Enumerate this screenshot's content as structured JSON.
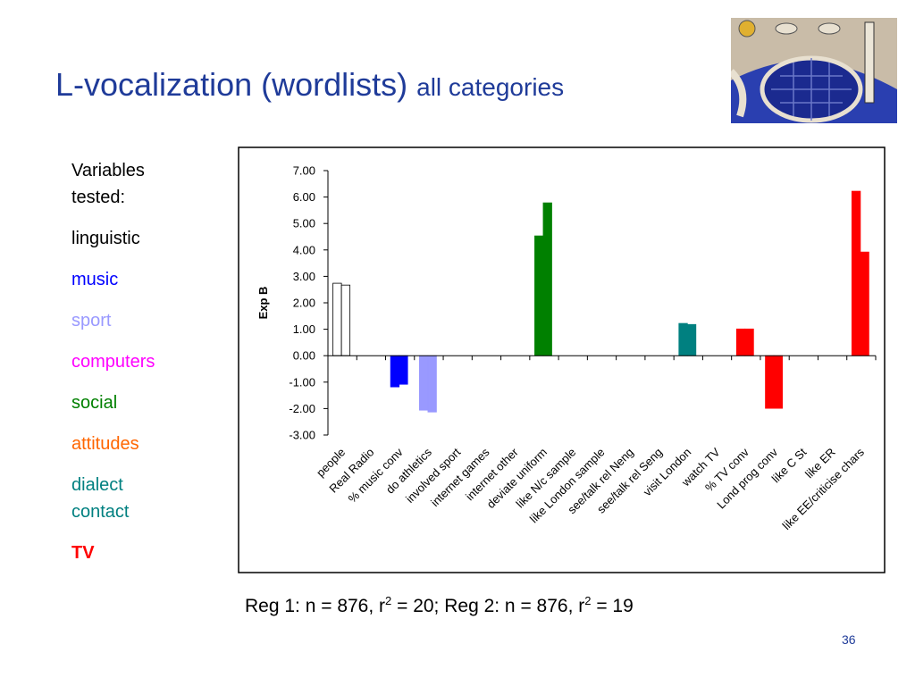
{
  "header": {
    "title": "L-vocalization (wordlists)",
    "subtitle": "all categories"
  },
  "sidebar": {
    "heading": "Variables tested:",
    "items": [
      {
        "text": "linguistic",
        "color": "#000000"
      },
      {
        "text": "music",
        "color": "#0000ff"
      },
      {
        "text": "sport",
        "color": "#9999ff"
      },
      {
        "text": "computers",
        "color": "#ff00ff"
      },
      {
        "text": "social",
        "color": "#008000"
      },
      {
        "text": "attitudes",
        "color": "#ff6600"
      },
      {
        "text": "dialect contact",
        "color": "#008080"
      },
      {
        "text": "TV",
        "color": "#ff0000"
      }
    ]
  },
  "chart_data": {
    "type": "bar",
    "y_label": "Exp B",
    "categories": [
      "people",
      "Real Radio",
      "% music conv",
      "do athletics",
      "involved sport",
      "internet games",
      "internet other",
      "deviate uniform",
      "like N/c sample",
      "like London sample",
      "see/talk rel Neng",
      "see/talk rel Seng",
      "visit London",
      "watch TV",
      "% TV conv",
      "Lond prog conv",
      "like C St",
      "like ER",
      "like EE/criticise chars"
    ],
    "colors": [
      "#ffffff",
      null,
      "#0000ff",
      "#9999ff",
      null,
      null,
      null,
      "#008000",
      null,
      null,
      null,
      null,
      "#008080",
      null,
      "#ff0000",
      "#ff0000",
      null,
      null,
      "#ff0000"
    ],
    "series": [
      {
        "values": [
          2.74,
          null,
          -1.18,
          -2.06,
          null,
          null,
          null,
          4.53,
          null,
          null,
          null,
          null,
          1.22,
          null,
          1.01,
          -1.99,
          null,
          null,
          6.22
        ]
      },
      {
        "values": [
          2.67,
          null,
          -1.08,
          -2.13,
          null,
          null,
          null,
          5.78,
          null,
          null,
          null,
          null,
          1.18,
          null,
          1.01,
          -1.99,
          null,
          null,
          3.92
        ]
      }
    ],
    "ylim": [
      -3,
      7
    ],
    "yticks": [
      {
        "value": 7,
        "label": "7.00"
      },
      {
        "value": 6,
        "label": "6.00"
      },
      {
        "value": 5,
        "label": "5.00"
      },
      {
        "value": 4,
        "label": "4.00"
      },
      {
        "value": 3,
        "label": "3.00"
      },
      {
        "value": 2,
        "label": "2.00"
      },
      {
        "value": 1,
        "label": "1.00"
      },
      {
        "value": 0,
        "label": "0.00"
      },
      {
        "value": -1,
        "label": "-1.00"
      },
      {
        "value": -2,
        "label": "-2.00"
      },
      {
        "value": -3,
        "label": "-3.00"
      }
    ]
  },
  "caption": [
    "Reg 1: n = 876, r",
    "2",
    " = 20; Reg 2: n = 876, r",
    "2",
    " = 19"
  ],
  "page_number": "36"
}
